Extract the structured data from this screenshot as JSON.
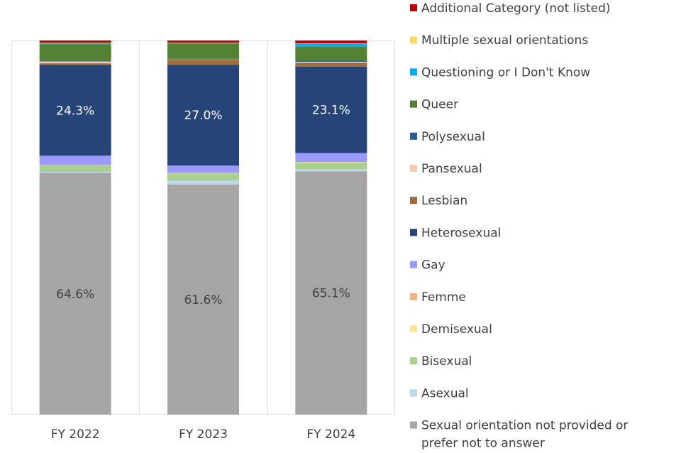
{
  "chart_data": {
    "type": "bar",
    "stacked": true,
    "normalized": true,
    "title": "",
    "xlabel": "",
    "ylabel": "",
    "ylim": [
      0,
      100
    ],
    "grid": false,
    "legend": "right",
    "categories": [
      "FY 2022",
      "FY 2023",
      "FY 2024"
    ],
    "series": [
      {
        "name": "Sexual orientation not provided or prefer not to answer",
        "color": "#A5A5A5",
        "values": [
          64.6,
          61.6,
          65.1
        ],
        "labels": [
          "64.6%",
          "61.6%",
          "65.1%"
        ],
        "label_color": "#404040"
      },
      {
        "name": "Asexual",
        "color": "#BDD7EE",
        "values": [
          0.3,
          1.1,
          0.5
        ]
      },
      {
        "name": "Bisexual",
        "color": "#A9D18E",
        "values": [
          1.7,
          1.9,
          1.8
        ]
      },
      {
        "name": "Demisexual",
        "color": "#FFE699",
        "values": [
          0.1,
          0.1,
          0.1
        ]
      },
      {
        "name": "Femme",
        "color": "#F4B183",
        "values": [
          0.0,
          0.0,
          0.1
        ]
      },
      {
        "name": "Gay",
        "color": "#9999FF",
        "values": [
          2.5,
          2.0,
          2.4
        ]
      },
      {
        "name": "Heterosexual",
        "color": "#264478",
        "values": [
          24.3,
          27.0,
          23.1
        ],
        "labels": [
          "24.3%",
          "27.0%",
          "23.1%"
        ],
        "label_color": "#FFFFFF"
      },
      {
        "name": "Lesbian",
        "color": "#9E6B3B",
        "values": [
          0.4,
          1.3,
          1.0
        ]
      },
      {
        "name": "Pansexual",
        "color": "#F8CBAD",
        "values": [
          0.5,
          0.1,
          0.3
        ]
      },
      {
        "name": "Polysexual",
        "color": "#255E91",
        "values": [
          0.2,
          0.2,
          0.3
        ]
      },
      {
        "name": "Queer",
        "color": "#548235",
        "values": [
          4.4,
          4.1,
          3.7
        ]
      },
      {
        "name": "Questioning or I Don't Know",
        "color": "#00B0F0",
        "values": [
          0.3,
          0.1,
          0.8
        ]
      },
      {
        "name": "Multiple sexual orientations",
        "color": "#FFD966",
        "values": [
          0.1,
          0.1,
          0.1
        ]
      },
      {
        "name": "Additional Category (not listed)",
        "color": "#C00000",
        "values": [
          0.6,
          0.6,
          0.8
        ]
      }
    ]
  }
}
